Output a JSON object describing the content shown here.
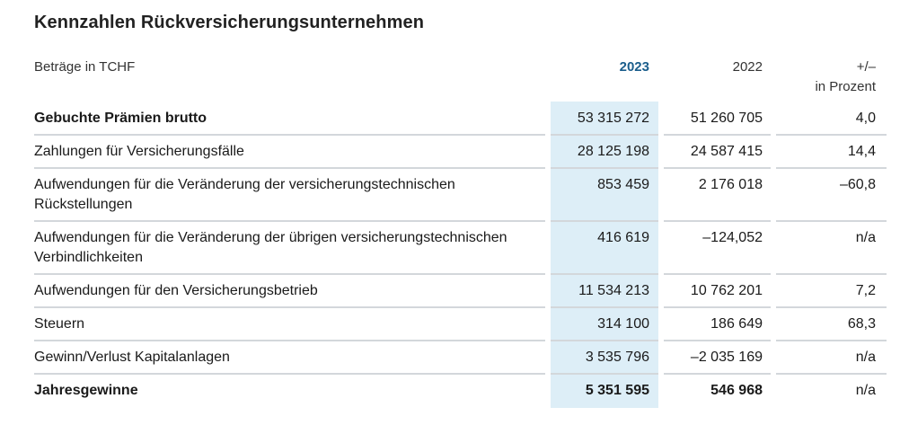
{
  "title": "Kennzahlen Rückversicherungsunternehmen",
  "header": {
    "label": "Beträge in TCHF",
    "col_2023": "2023",
    "col_2022": "2022",
    "col_change_line1": "+/–",
    "col_change_line2": "in Prozent"
  },
  "rows": [
    {
      "label": "Gebuchte Prämien brutto",
      "v2023": "53 315 272",
      "v2022": "51 260 705",
      "change": "4,0",
      "bold": true
    },
    {
      "label": "Zahlungen für Versicherungsfälle",
      "v2023": "28 125 198",
      "v2022": "24 587 415",
      "change": "14,4",
      "bold": false
    },
    {
      "label": "Aufwendungen für die Veränderung der versicherungstechnischen Rückstellungen",
      "v2023": "853 459",
      "v2022": "2 176 018",
      "change": "–60,8",
      "bold": false
    },
    {
      "label": "Aufwendungen für die Veränderung der übrigen versicherungstechnischen Verbindlichkeiten",
      "v2023": "416 619",
      "v2022": "–124,052",
      "change": "n/a",
      "bold": false
    },
    {
      "label": "Aufwendungen für den Versicherungsbetrieb",
      "v2023": "11 534 213",
      "v2022": "10 762 201",
      "change": "7,2",
      "bold": false
    },
    {
      "label": "Steuern",
      "v2023": "314 100",
      "v2022": "186 649",
      "change": "68,3",
      "bold": false
    },
    {
      "label": "Gewinn/Verlust Kapitalanlagen",
      "v2023": "3 535 796",
      "v2022": "–2 035 169",
      "change": "n/a",
      "bold": false
    },
    {
      "label": "Jahresgewinne",
      "v2023": "5 351 595",
      "v2022": "546 968",
      "change": "n/a",
      "bold": true
    }
  ],
  "colors": {
    "highlight_column": "#ddeef7",
    "year_2023_header": "#1b5e8c",
    "row_divider": "#d3d7db"
  }
}
